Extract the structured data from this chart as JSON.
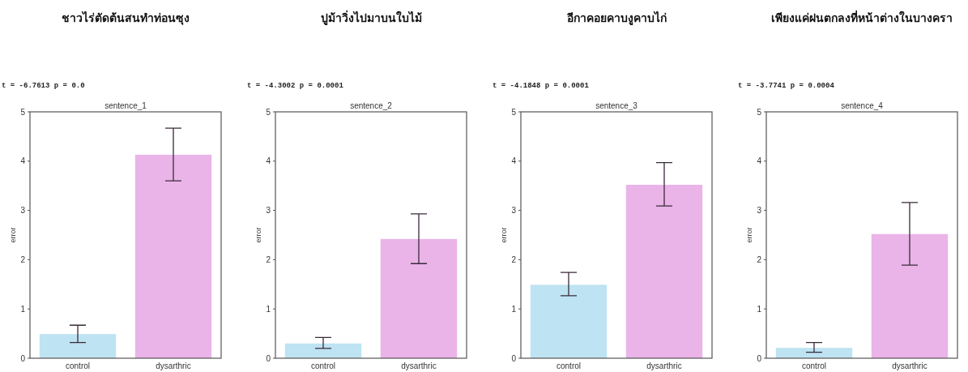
{
  "chart_data": [
    {
      "type": "bar",
      "title": "ชาวไร่ตัดต้นสนทำท่อนซุง",
      "subtitle": "sentence_1",
      "annotations": [
        "t = -6.7613 p = 0.0"
      ],
      "ylabel": "error",
      "categories": [
        "control",
        "dysarthric"
      ],
      "values": [
        0.49,
        4.13
      ],
      "colors": [
        "#bee3f2",
        "#eab4e8"
      ],
      "errors": [
        [
          0.32,
          0.67
        ],
        [
          3.6,
          4.67
        ]
      ],
      "ylim": [
        0,
        5
      ],
      "yticks": [
        0,
        1,
        2,
        3,
        4,
        5
      ],
      "grid": false
    },
    {
      "type": "bar",
      "title": "ปูม้าวิ่งไปมาบนใบไม้",
      "subtitle": "sentence_2",
      "annotations": [
        "t = -4.3002 p = 0.0001"
      ],
      "ylabel": "error",
      "categories": [
        "control",
        "dysarthric"
      ],
      "values": [
        0.3,
        2.42
      ],
      "colors": [
        "#bee3f2",
        "#eab4e8"
      ],
      "errors": [
        [
          0.2,
          0.42
        ],
        [
          1.92,
          2.93
        ]
      ],
      "ylim": [
        0,
        5
      ],
      "yticks": [
        0,
        1,
        2,
        3,
        4,
        5
      ],
      "grid": false
    },
    {
      "type": "bar",
      "title": "อีกาคอยคาบงูคาบไก่",
      "subtitle": "sentence_3",
      "annotations": [
        "t = -4.1848 p = 0.0001"
      ],
      "ylabel": "error",
      "categories": [
        "control",
        "dysarthric"
      ],
      "values": [
        1.49,
        3.52
      ],
      "colors": [
        "#bee3f2",
        "#eab4e8"
      ],
      "errors": [
        [
          1.27,
          1.74
        ],
        [
          3.09,
          3.97
        ]
      ],
      "ylim": [
        0,
        5
      ],
      "yticks": [
        0,
        1,
        2,
        3,
        4,
        5
      ],
      "grid": false
    },
    {
      "type": "bar",
      "title": "เพียงแค่ฝนตกลงที่หน้าต่างในบางครา",
      "subtitle": "sentence_4",
      "annotations": [
        "t = -3.7741 p = 0.0004"
      ],
      "ylabel": "error",
      "categories": [
        "control",
        "dysarthric"
      ],
      "values": [
        0.21,
        2.52
      ],
      "colors": [
        "#bee3f2",
        "#eab4e8"
      ],
      "errors": [
        [
          0.12,
          0.32
        ],
        [
          1.89,
          3.16
        ]
      ],
      "ylim": [
        0,
        5
      ],
      "yticks": [
        0,
        1,
        2,
        3,
        4,
        5
      ],
      "grid": false
    }
  ]
}
